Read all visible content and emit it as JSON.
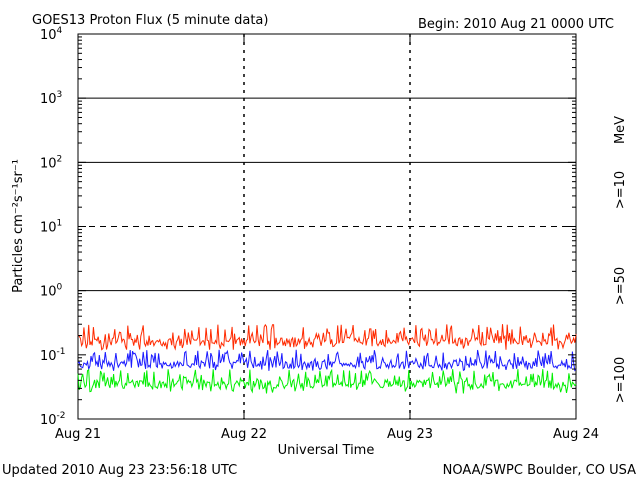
{
  "header": {
    "title": "GOES13 Proton Flux (5 minute data)",
    "begin": "Begin: 2010 Aug 21 0000 UTC"
  },
  "footer": {
    "updated": "Updated 2010 Aug 23 23:56:18 UTC",
    "credit": "NOAA/SWPC Boulder, CO USA"
  },
  "chart_data": {
    "type": "line",
    "title": "GOES13 Proton Flux (5 minute data)",
    "xlabel": "Universal Time",
    "ylabel": "Particles cm⁻²s⁻¹sr⁻¹",
    "yscale": "log",
    "ylim": [
      0.01,
      10000
    ],
    "y_ticks": [
      {
        "base": "10",
        "exp": "-2",
        "value": 0.01
      },
      {
        "base": "10",
        "exp": "-1",
        "value": 0.1
      },
      {
        "base": "10",
        "exp": "0",
        "value": 1
      },
      {
        "base": "10",
        "exp": "1",
        "value": 10
      },
      {
        "base": "10",
        "exp": "2",
        "value": 100
      },
      {
        "base": "10",
        "exp": "3",
        "value": 1000
      },
      {
        "base": "10",
        "exp": "4",
        "value": 10000
      }
    ],
    "x_ticks": [
      "Aug 21",
      "Aug 22",
      "Aug 23",
      "Aug 24"
    ],
    "xlim": [
      "2010-08-21",
      "2010-08-24"
    ],
    "units_label": "MeV",
    "threshold_lines": [
      {
        "value": 10,
        "style": "dashed"
      },
      {
        "value": 100,
        "style": "solid"
      },
      {
        "value": 1000,
        "style": "solid"
      },
      {
        "value": 1,
        "style": "solid"
      }
    ],
    "series": [
      {
        "name": ">=10",
        "color": "#ff2a00",
        "typical_range": [
          0.12,
          0.3
        ],
        "median": 0.16
      },
      {
        "name": ">=50",
        "color": "#1a1aff",
        "typical_range": [
          0.055,
          0.12
        ],
        "median": 0.07
      },
      {
        "name": ">=100",
        "color": "#00ee00",
        "typical_range": [
          0.025,
          0.06
        ],
        "median": 0.035
      }
    ]
  }
}
